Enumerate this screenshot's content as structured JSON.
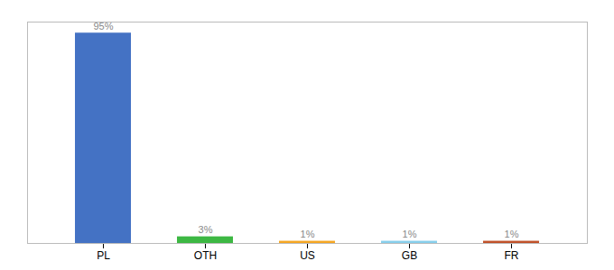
{
  "chart_data": {
    "type": "bar",
    "categories": [
      "PL",
      "OTH",
      "US",
      "GB",
      "FR"
    ],
    "values": [
      95,
      3,
      1,
      1,
      1
    ],
    "value_labels": [
      "95%",
      "3%",
      "1%",
      "1%",
      "1%"
    ],
    "colors": [
      "#4472c4",
      "#3db843",
      "#f5a623",
      "#87ceeb",
      "#c0522a"
    ],
    "ylim": [
      0,
      100
    ],
    "data_labels": true,
    "tick_labels": "x",
    "grid": false
  }
}
